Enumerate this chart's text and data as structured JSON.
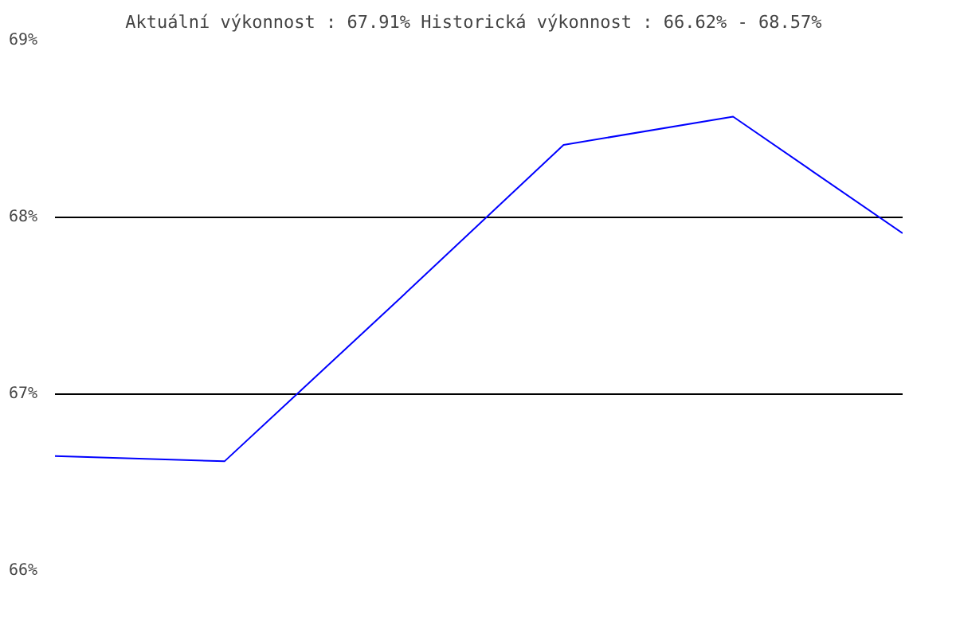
{
  "chart_data": {
    "type": "line",
    "title": "Aktuální výkonnost : 67.91%  Historická výkonnost : 66.62% - 68.57%",
    "categories": [
      null,
      null,
      null,
      null,
      null,
      null
    ],
    "series": [
      {
        "color": "#0000ff",
        "values": [
          66.65,
          66.62,
          67.51,
          68.41,
          68.57,
          67.91
        ]
      }
    ],
    "ylim": [
      66,
      69
    ],
    "yticks": [
      {
        "value": 66,
        "label": "66%"
      },
      {
        "value": 67,
        "label": "67%"
      },
      {
        "value": 68,
        "label": "68%"
      },
      {
        "value": 69,
        "label": "69%"
      }
    ],
    "grid": "y",
    "tick_labels": "y",
    "marker": "none",
    "line_style": "solid"
  }
}
